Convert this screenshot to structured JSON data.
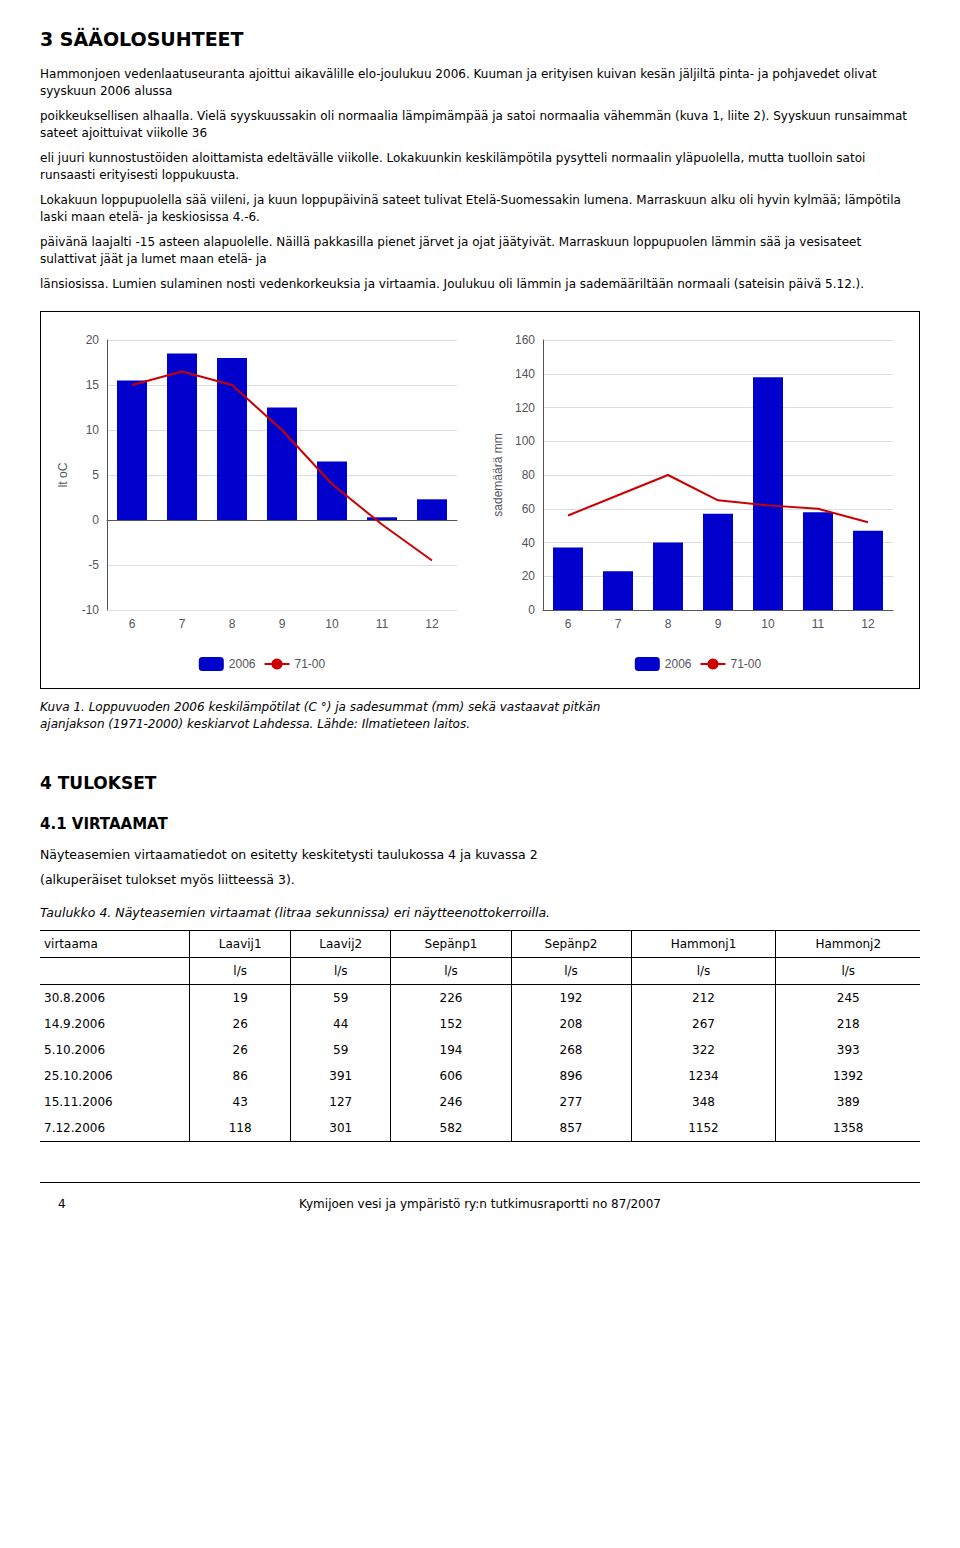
{
  "page_title": "3 SÄÄOLOSUHTEET",
  "paragraphs": [
    "Hammonjoen vedenlaatuseuranta ajoittui aikavälille elo-joulukuu 2006. Kuuman ja erityisen kuivan kesän jäljiltä pinta- ja pohjavedet olivat syyskuun 2006 alussa",
    "poikkeuksellisen alhaalla. Vielä syyskuussakin oli normaalia lämpimämpää ja satoi normaalia vähemmän (kuva 1, liite 2). Syyskuun runsaimmat sateet ajoittuivat viikolle 36",
    "eli juuri kunnostustöiden aloittamista edeltävälle viikolle. Lokakuunkin keskilämpötila pysytteli normaalin yläpuolella, mutta tuolloin satoi runsaasti erityisesti loppukuusta.",
    "Lokakuun loppupuolella sää viileni, ja kuun loppupäivinä sateet tulivat Etelä-Suomessakin lumena. Marraskuun alku oli hyvin kylmää; lämpötila laski maan etelä- ja keskiosissa 4.-6.",
    "päivänä laajalti -15 asteen alapuolelle. Näillä pakkasilla pienet järvet ja ojat jäätyivät. Marraskuun loppupuolen lämmin sää ja vesisateet sulattivat jäät ja lumet maan etelä- ja",
    "länsiosissa. Lumien sulaminen nosti vedenkorkeuksia ja virtaamia. Joulukuu oli lämmin ja sademääriltään normaali (sateisin päivä 5.12.)."
  ],
  "chart_data": [
    {
      "type": "bar",
      "categories": [
        "6",
        "7",
        "8",
        "9",
        "10",
        "11",
        "12"
      ],
      "ylabel": "lt oC",
      "ylim": [
        -10,
        20
      ],
      "yticks": [
        -10,
        -5,
        0,
        5,
        10,
        15,
        20
      ],
      "grid": true,
      "legend": "bottom",
      "series": [
        {
          "name": "2006",
          "type": "bar",
          "color": "#0000cc",
          "values": [
            15.5,
            18.5,
            18.0,
            12.5,
            6.5,
            0.3,
            2.3
          ]
        },
        {
          "name": "71-00",
          "type": "line",
          "color": "#cc0000",
          "values": [
            15.0,
            16.5,
            15.0,
            10.0,
            4.0,
            -0.5,
            -4.5
          ]
        }
      ]
    },
    {
      "type": "bar",
      "categories": [
        "6",
        "7",
        "8",
        "9",
        "10",
        "11",
        "12"
      ],
      "ylabel": "sademäärä mm",
      "ylim": [
        0,
        160
      ],
      "yticks": [
        0,
        20,
        40,
        60,
        80,
        100,
        120,
        140,
        160
      ],
      "grid": true,
      "legend": "bottom",
      "series": [
        {
          "name": "2006",
          "type": "bar",
          "color": "#0000cc",
          "values": [
            37,
            23,
            40,
            57,
            138,
            58,
            47
          ]
        },
        {
          "name": "71-00",
          "type": "line",
          "color": "#cc0000",
          "values": [
            56,
            68,
            80,
            65,
            62,
            60,
            52
          ]
        }
      ]
    }
  ],
  "caption": "Kuva 1. Loppuvuoden 2006 keskilämpötilat (C °) ja sadesummat (mm) sekä vastaavat pitkän\najanjakson (1971-2000) keskiarvot Lahdessa. Lähde: Ilmatieteen laitos.",
  "section4_title": "4  TULOKSET",
  "section41_title": "4.1 VIRTAAMAT",
  "section41_text": [
    "Näyteasemien virtaamatiedot on esitetty keskitetysti taulukossa 4 ja kuvassa 2",
    "(alkuperäiset tulokset myös liitteessä 3)."
  ],
  "table_caption": "Taulukko 4. Näyteasemien virtaamat (litraa sekunnissa) eri näytteenottokerroilla.",
  "table": {
    "header": [
      "virtaama",
      "Laavij1",
      "Laavij2",
      "Sepänp1",
      "Sepänp2",
      "Hammonj1",
      "Hammonj2"
    ],
    "units": [
      "l/s",
      "l/s",
      "l/s",
      "l/s",
      "l/s",
      "l/s"
    ],
    "rows": [
      [
        "30.8.2006",
        "19",
        "59",
        "226",
        "192",
        "212",
        "245"
      ],
      [
        "14.9.2006",
        "26",
        "44",
        "152",
        "208",
        "267",
        "218"
      ],
      [
        "5.10.2006",
        "26",
        "59",
        "194",
        "268",
        "322",
        "393"
      ],
      [
        "25.10.2006",
        "86",
        "391",
        "606",
        "896",
        "1234",
        "1392"
      ],
      [
        "15.11.2006",
        "43",
        "127",
        "246",
        "277",
        "348",
        "389"
      ],
      [
        "7.12.2006",
        "118",
        "301",
        "582",
        "857",
        "1152",
        "1358"
      ]
    ]
  },
  "footer_left": "4",
  "footer_center": "Kymijoen vesi ja ympäristö ry:n tutkimusraportti no 87/2007"
}
